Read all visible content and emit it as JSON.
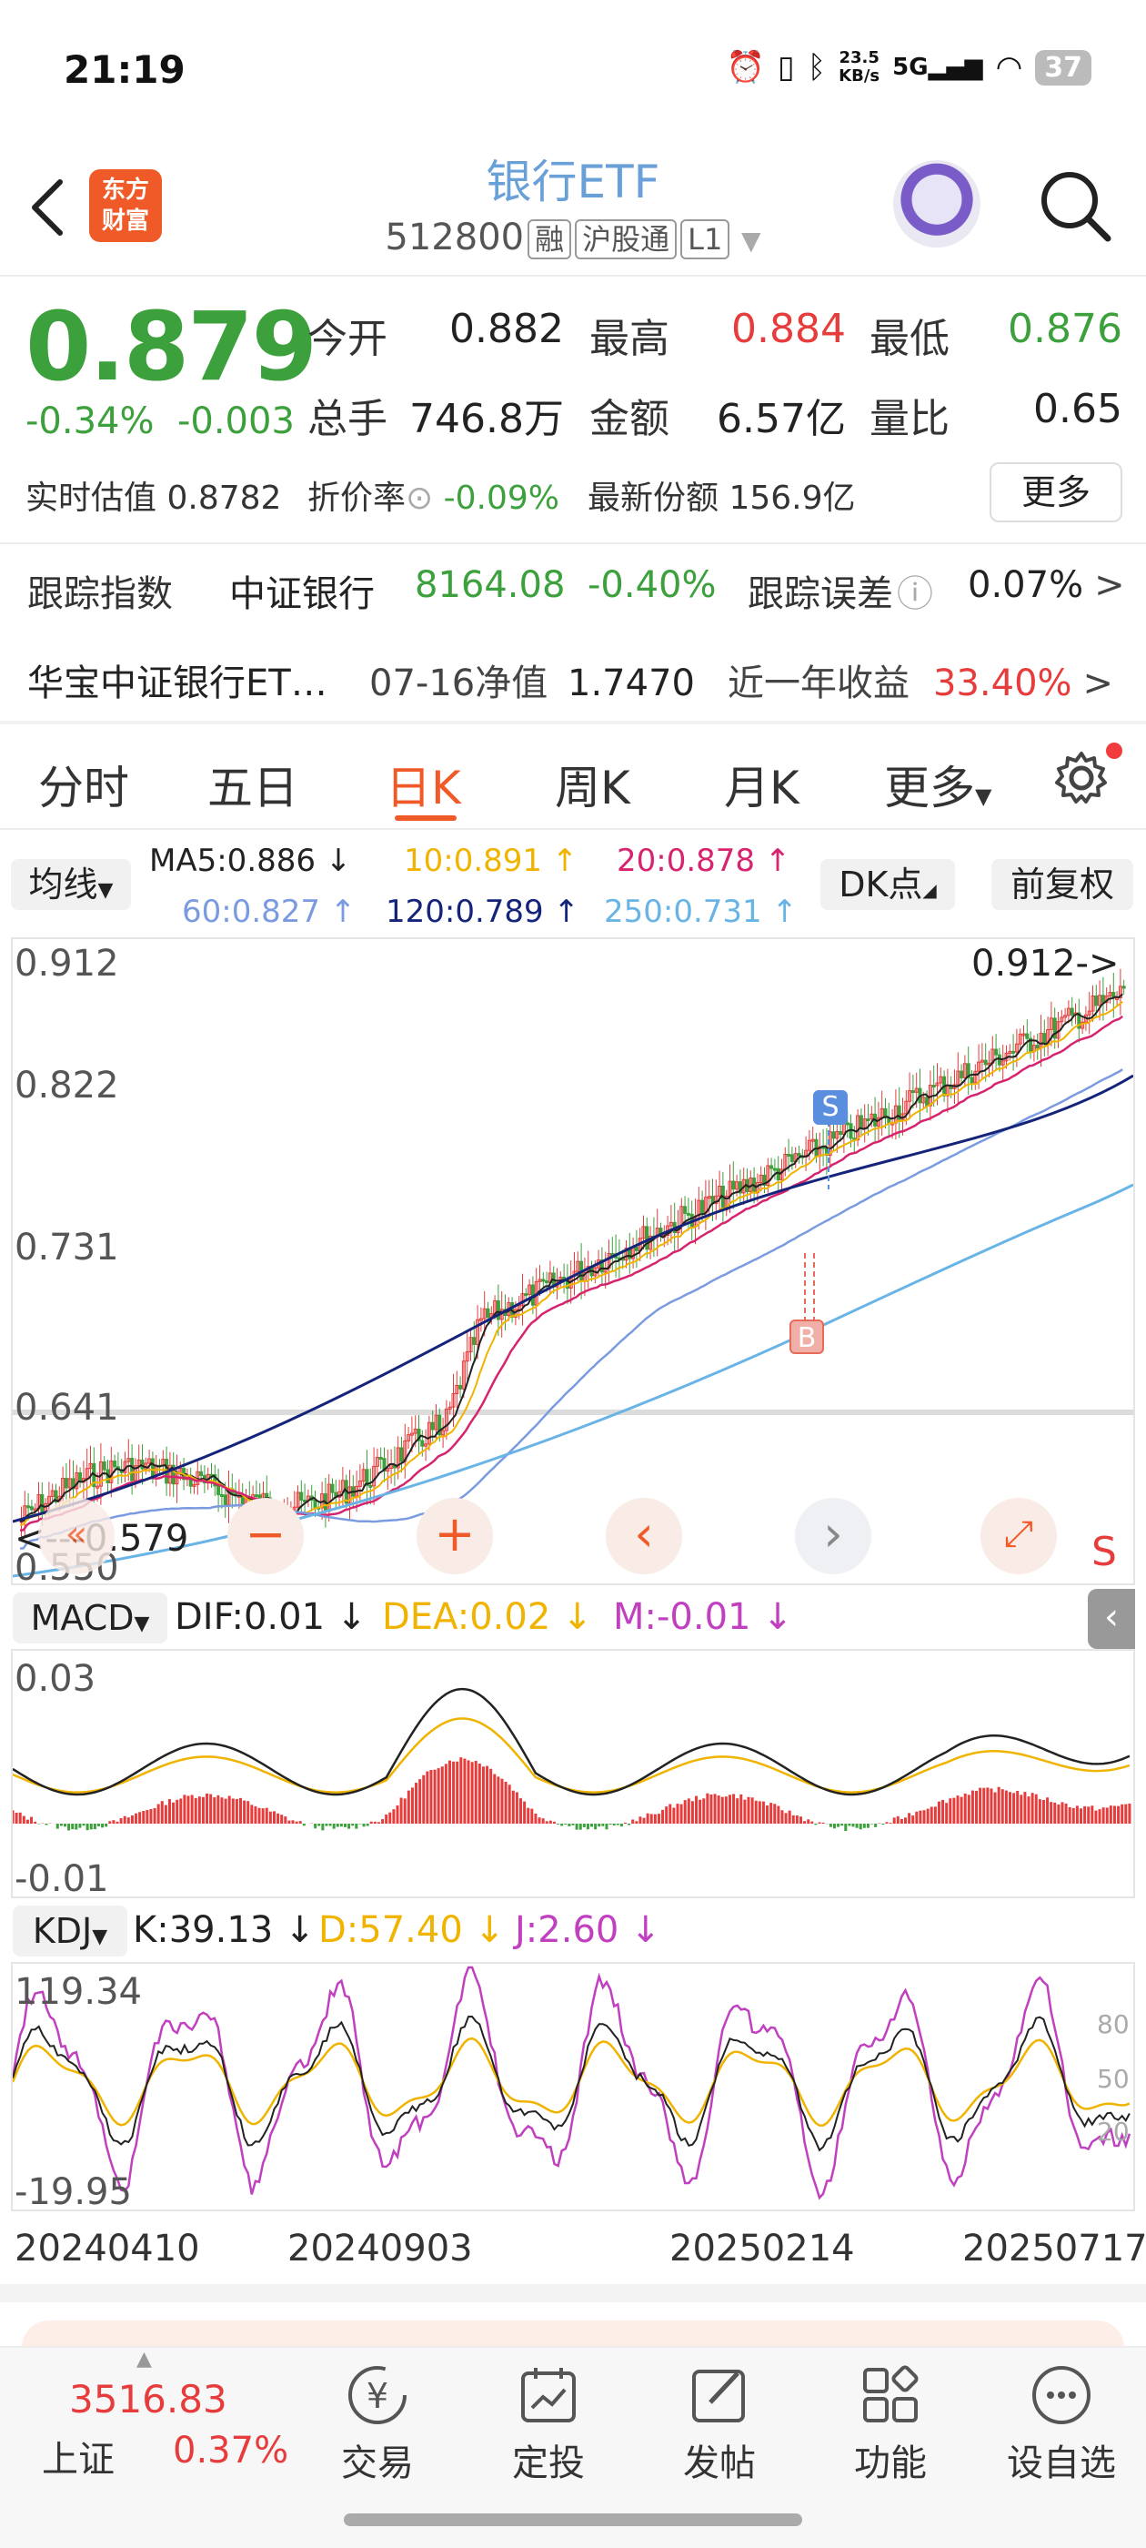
{
  "status_bar": {
    "time": "21:19",
    "net_speed_value": "23.5",
    "net_speed_unit": "KB/s",
    "net_type": "5G",
    "battery": "37"
  },
  "header": {
    "logo_text_line1": "东方",
    "logo_text_line2": "财富",
    "title": "银行ETF",
    "code": "512800",
    "tags": [
      "融",
      "沪股通",
      "L1"
    ]
  },
  "quote": {
    "price": "0.879",
    "change_pct": "-0.34%",
    "change_abs": "-0.003",
    "open_label": "今开",
    "open": "0.882",
    "high_label": "最高",
    "high": "0.884",
    "low_label": "最低",
    "low": "0.876",
    "volume_label": "总手",
    "volume": "746.8万",
    "amount_label": "金额",
    "amount": "6.57亿",
    "ratio_label": "量比",
    "ratio": "0.65",
    "iopv_label": "实时估值",
    "iopv": "0.8782",
    "discount_label": "折价率",
    "discount": "-0.09%",
    "shares_label": "最新份额",
    "shares": "156.9亿",
    "more_label": "更多"
  },
  "tracking": {
    "label": "跟踪指数",
    "index_name": "中证银行",
    "index_value": "8164.08",
    "index_change": "-0.40%",
    "error_label": "跟踪误差",
    "error_value": "0.07%"
  },
  "nav": {
    "fund_name": "华宝中证银行ET…",
    "date_label": "07-16净值",
    "nav_value": "1.7470",
    "return_label": "近一年收益",
    "return_value": "33.40%"
  },
  "tabs": [
    "分时",
    "五日",
    "日K",
    "周K",
    "月K",
    "更多"
  ],
  "active_tab": "日K",
  "ma_legend": {
    "button": "均线",
    "ma5": "MA5:0.886 ↓",
    "ma10": "10:0.891 ↑",
    "ma20": "20:0.878 ↑",
    "ma60": "60:0.827 ↑",
    "ma120": "120:0.789 ↑",
    "ma250": "250:0.731 ↑",
    "dk_button": "DK点",
    "adjust_button": "前复权"
  },
  "colors": {
    "ma5": "#222222",
    "ma10": "#f0b400",
    "ma20": "#d6246e",
    "ma60": "#7b9be0",
    "ma120": "#14247a",
    "ma250": "#69b4e6",
    "up": "#e63c3c",
    "down": "#3ca03c",
    "accent": "#ef5a28"
  },
  "kline": {
    "y_ticks": [
      "0.912",
      "0.822",
      "0.731",
      "0.641",
      "0.550"
    ],
    "high_marker": "0.912->",
    "low_marker": "<---0.579",
    "sell_marker": "S",
    "buy_marker": "B",
    "corner_mark": "S"
  },
  "macd": {
    "button": "MACD",
    "dif": "DIF:0.01 ↓",
    "dea": "DEA:0.02 ↓",
    "m": "M:-0.01 ↓",
    "y_top": "0.03",
    "y_bottom": "-0.01"
  },
  "kdj": {
    "button": "KDJ",
    "k": "K:39.13 ↓",
    "d": "D:57.40 ↓",
    "j": "J:2.60 ↓",
    "y_top": "119.34",
    "y_bottom": "-19.95",
    "right_ticks": [
      "80",
      "50",
      "20"
    ]
  },
  "x_axis": [
    "20240410",
    "20240903",
    "20250214",
    "20250717"
  ],
  "bottom_nav": {
    "index_value": "3516.83",
    "index_name": "上证",
    "index_change": "0.37%",
    "items": [
      "交易",
      "定投",
      "发帖",
      "功能",
      "设自选"
    ]
  }
}
